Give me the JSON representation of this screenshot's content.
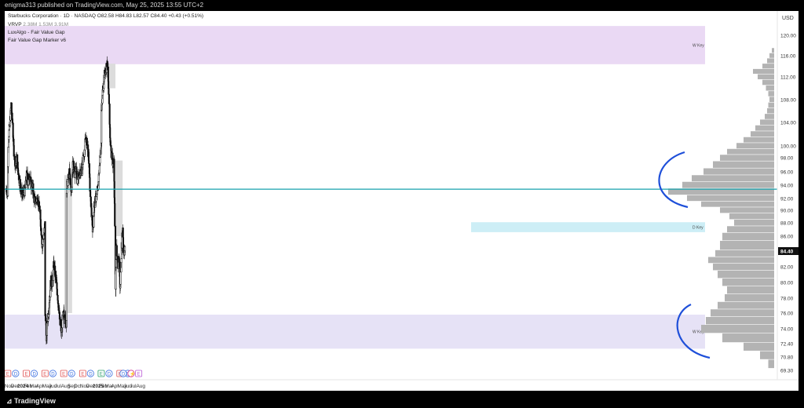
{
  "header": {
    "publish_line": "enigma313 published on TradingView.com, May 25, 2025 13:55 UTC+2"
  },
  "legend": {
    "symbol_line": "Starbucks Corporation · 1D · NASDAQ",
    "ohlc": {
      "o_label": "O",
      "o": "82.58",
      "h_label": "H",
      "h": "84.83",
      "l_label": "L",
      "l": "82.57",
      "c_label": "C",
      "c": "84.40",
      "change": "+0.43 (+0.51%)"
    },
    "vrvp": "VRVP",
    "vrvp_values": "2.38M  1.53M  3.91M",
    "indicator_1": "LuxAlgo - Fair Value Gap",
    "indicator_2": "Fair Value Gap Marker v6"
  },
  "footer": {
    "brand": "TradingView"
  },
  "colors": {
    "up": "#222222",
    "down": "#111111",
    "zone_purple": "#ead9f4",
    "zone_lavender": "#e6e2f6",
    "zone_blue": "#cdeef6",
    "hline": "#17a2ad",
    "volume_profile": "#b3b3b3",
    "annotation": "#1e4fd9",
    "fvg_gray": "#dcdcdc",
    "last_price_bg": "#111111"
  },
  "chart_data": {
    "type": "candlestick",
    "title": "Starbucks Corporation",
    "interval": "1D",
    "exchange": "NASDAQ",
    "currency_label": "USD",
    "y_ticks": [
      "120.00",
      "116.00",
      "112.00",
      "108.00",
      "104.00",
      "100.00",
      "98.00",
      "96.00",
      "94.00",
      "92.00",
      "90.00",
      "88.00",
      "86.00",
      "84.40",
      "82.00",
      "80.00",
      "78.00",
      "76.00",
      "74.00",
      "72.40",
      "70.80",
      "69.30"
    ],
    "last_price": 84.4,
    "x_labels": [
      "Nov",
      "Dec",
      "2024",
      "Feb",
      "Mar",
      "Apr",
      "May",
      "Jun",
      "Jul",
      "Aug",
      "Sep",
      "Oct",
      "Nov",
      "Dec",
      "2025",
      "Feb",
      "Mar",
      "Apr",
      "May",
      "Jun",
      "Jul",
      "Aug"
    ],
    "zones": [
      {
        "label": "W Key",
        "low": 114.4,
        "high": 121.8,
        "kind": "weekly supply"
      },
      {
        "label": "D Key",
        "low": 86.6,
        "high": 88.1,
        "kind": "daily"
      },
      {
        "label": "W Key",
        "low": 71.8,
        "high": 75.8,
        "kind": "weekly demand"
      }
    ],
    "horizontal_line": 93.4,
    "price_path": [
      [
        "2023-10-25",
        93.5
      ],
      [
        "2023-11-01",
        92.8
      ],
      [
        "2023-11-03",
        100.5
      ],
      [
        "2023-11-10",
        103.3
      ],
      [
        "2023-11-15",
        105.5
      ],
      [
        "2023-11-17",
        107.2
      ],
      [
        "2023-11-24",
        104.0
      ],
      [
        "2023-12-01",
        99.0
      ],
      [
        "2023-12-08",
        97.0
      ],
      [
        "2023-12-15",
        98.0
      ],
      [
        "2023-12-22",
        96.0
      ],
      [
        "2024-01-05",
        93.0
      ],
      [
        "2024-01-15",
        92.6
      ],
      [
        "2024-01-25",
        93.3
      ],
      [
        "2024-02-01",
        95.5
      ],
      [
        "2024-02-08",
        94.3
      ],
      [
        "2024-02-15",
        95.6
      ],
      [
        "2024-02-22",
        94.2
      ],
      [
        "2024-03-01",
        93.5
      ],
      [
        "2024-03-08",
        92.0
      ],
      [
        "2024-03-15",
        91.5
      ],
      [
        "2024-03-25",
        92.0
      ],
      [
        "2024-04-02",
        90.5
      ],
      [
        "2024-04-10",
        87.5
      ],
      [
        "2024-04-17",
        85.0
      ],
      [
        "2024-04-25",
        86.5
      ],
      [
        "2024-04-30",
        87.8
      ],
      [
        "2024-05-01",
        76.0
      ],
      [
        "2024-05-07",
        73.0
      ],
      [
        "2024-05-14",
        75.5
      ],
      [
        "2024-05-21",
        77.8
      ],
      [
        "2024-05-28",
        80.0
      ],
      [
        "2024-06-05",
        80.2
      ],
      [
        "2024-06-12",
        82.4
      ],
      [
        "2024-06-19",
        81.0
      ],
      [
        "2024-06-26",
        79.5
      ],
      [
        "2024-07-05",
        77.0
      ],
      [
        "2024-07-12",
        74.5
      ],
      [
        "2024-07-19",
        73.8
      ],
      [
        "2024-07-26",
        75.5
      ],
      [
        "2024-08-02",
        76.0
      ],
      [
        "2024-08-09",
        74.8
      ],
      [
        "2024-08-12",
        75.2
      ],
      [
        "2024-08-13",
        93.6
      ],
      [
        "2024-08-20",
        94.8
      ],
      [
        "2024-08-27",
        95.8
      ],
      [
        "2024-09-05",
        93.0
      ],
      [
        "2024-09-12",
        97.6
      ],
      [
        "2024-09-19",
        95.8
      ],
      [
        "2024-09-26",
        96.5
      ],
      [
        "2024-10-03",
        95.0
      ],
      [
        "2024-10-10",
        94.8
      ],
      [
        "2024-10-17",
        96.3
      ],
      [
        "2024-10-24",
        96.0
      ],
      [
        "2024-10-31",
        97.7
      ],
      [
        "2024-11-07",
        99.0
      ],
      [
        "2024-11-14",
        101.5
      ],
      [
        "2024-11-21",
        100.2
      ],
      [
        "2024-11-28",
        98.0
      ],
      [
        "2024-12-05",
        93.0
      ],
      [
        "2024-12-12",
        89.5
      ],
      [
        "2024-12-18",
        87.0
      ],
      [
        "2024-12-26",
        91.0
      ],
      [
        "2025-01-06",
        92.5
      ],
      [
        "2025-01-14",
        94.0
      ],
      [
        "2025-01-21",
        98.0
      ],
      [
        "2025-01-28",
        100.5
      ],
      [
        "2025-01-29",
        106.0
      ],
      [
        "2025-02-05",
        110.0
      ],
      [
        "2025-02-12",
        112.5
      ],
      [
        "2025-02-19",
        113.2
      ],
      [
        "2025-02-26",
        114.5
      ],
      [
        "2025-03-03",
        112.0
      ],
      [
        "2025-03-10",
        103.0
      ],
      [
        "2025-03-17",
        99.0
      ],
      [
        "2025-03-24",
        97.5
      ],
      [
        "2025-03-31",
        97.6
      ],
      [
        "2025-04-04",
        88.0
      ],
      [
        "2025-04-08",
        79.5
      ],
      [
        "2025-04-11",
        84.5
      ],
      [
        "2025-04-17",
        82.0
      ],
      [
        "2025-04-24",
        83.5
      ],
      [
        "2025-04-30",
        79.0
      ],
      [
        "2025-05-02",
        81.0
      ],
      [
        "2025-05-08",
        85.5
      ],
      [
        "2025-05-13",
        87.0
      ],
      [
        "2025-05-16",
        84.5
      ],
      [
        "2025-05-23",
        84.4
      ]
    ],
    "volume_profile": {
      "price_low": 69.3,
      "price_high": 118.0,
      "poc": 93.4,
      "levels": [
        [
          117,
          2
        ],
        [
          116,
          4
        ],
        [
          115,
          6
        ],
        [
          114,
          10
        ],
        [
          113,
          18
        ],
        [
          112,
          14
        ],
        [
          111,
          10
        ],
        [
          110,
          7
        ],
        [
          109,
          5
        ],
        [
          108,
          4
        ],
        [
          107,
          5
        ],
        [
          106,
          6
        ],
        [
          105,
          8
        ],
        [
          104,
          12
        ],
        [
          103,
          16
        ],
        [
          102,
          20
        ],
        [
          101,
          26
        ],
        [
          100,
          32
        ],
        [
          99,
          40
        ],
        [
          98,
          46
        ],
        [
          97,
          52
        ],
        [
          96,
          60
        ],
        [
          95,
          70
        ],
        [
          94,
          78
        ],
        [
          93,
          90
        ],
        [
          92,
          74
        ],
        [
          91,
          62
        ],
        [
          90,
          46
        ],
        [
          89,
          38
        ],
        [
          88,
          34
        ],
        [
          87,
          40
        ],
        [
          86,
          44
        ],
        [
          85,
          46
        ],
        [
          84,
          50
        ],
        [
          83,
          56
        ],
        [
          82,
          52
        ],
        [
          81,
          48
        ],
        [
          80,
          44
        ],
        [
          79,
          40
        ],
        [
          78,
          42
        ],
        [
          77,
          48
        ],
        [
          76,
          54
        ],
        [
          75,
          58
        ],
        [
          74,
          62
        ],
        [
          73,
          44
        ],
        [
          72,
          26
        ],
        [
          71,
          12
        ],
        [
          70,
          5
        ]
      ]
    },
    "event_markers": [
      {
        "icons": [
          "E",
          "D"
        ],
        "date": "2023-11-01"
      },
      {
        "icons": [
          "E",
          "D"
        ],
        "date": "2024-01-30"
      },
      {
        "icons": [
          "E",
          "D"
        ],
        "date": "2024-04-30"
      },
      {
        "icons": [
          "E",
          "D"
        ],
        "date": "2024-07-30"
      },
      {
        "icons": [
          "E",
          "D"
        ],
        "date": "2024-10-30"
      },
      {
        "icons": [
          "E",
          "D"
        ],
        "date": "2025-01-28"
      },
      {
        "icons": [
          "E",
          "D"
        ],
        "date": "2025-04-29"
      },
      {
        "icons": [
          "D",
          "S"
        ],
        "date": "2025-05-15"
      },
      {
        "icons": [
          "E"
        ],
        "date": "2025-07-29"
      }
    ],
    "annotations": [
      "blue arc bracket around volume peak near 94",
      "blue arc bracket around volume cluster near 74"
    ],
    "grid": false
  }
}
